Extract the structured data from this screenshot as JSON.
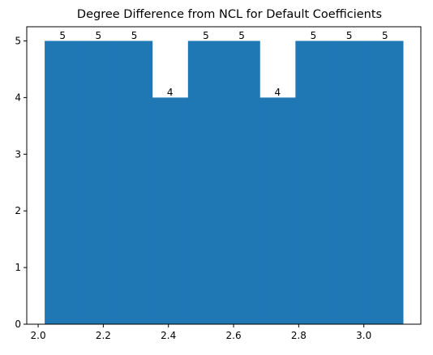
{
  "chart_data": {
    "type": "bar",
    "title": "Degree Difference from NCL for Default Coefficients",
    "xlabel": "",
    "ylabel": "",
    "bar_color": "#1f77b4",
    "bins": [
      {
        "x0": 2.02,
        "x1": 2.13,
        "value": 5
      },
      {
        "x0": 2.13,
        "x1": 2.24,
        "value": 5
      },
      {
        "x0": 2.24,
        "x1": 2.35,
        "value": 5
      },
      {
        "x0": 2.35,
        "x1": 2.46,
        "value": 4
      },
      {
        "x0": 2.46,
        "x1": 2.57,
        "value": 5
      },
      {
        "x0": 2.57,
        "x1": 2.68,
        "value": 5
      },
      {
        "x0": 2.68,
        "x1": 2.79,
        "value": 4
      },
      {
        "x0": 2.79,
        "x1": 2.9,
        "value": 5
      },
      {
        "x0": 2.9,
        "x1": 3.01,
        "value": 5
      },
      {
        "x0": 3.01,
        "x1": 3.12,
        "value": 5
      }
    ],
    "data_labels": [
      "5",
      "5",
      "5",
      "4",
      "5",
      "5",
      "4",
      "5",
      "5",
      "5"
    ],
    "xlim": [
      1.965,
      3.175
    ],
    "ylim": [
      0,
      5.25
    ],
    "x_ticks": [
      2.0,
      2.2,
      2.4,
      2.6,
      2.8,
      3.0
    ],
    "x_tick_labels": [
      "2.0",
      "2.2",
      "2.4",
      "2.6",
      "2.8",
      "3.0"
    ],
    "y_ticks": [
      0,
      1,
      2,
      3,
      4,
      5
    ],
    "y_tick_labels": [
      "0",
      "1",
      "2",
      "3",
      "4",
      "5"
    ],
    "grid": false,
    "legend": "none"
  }
}
